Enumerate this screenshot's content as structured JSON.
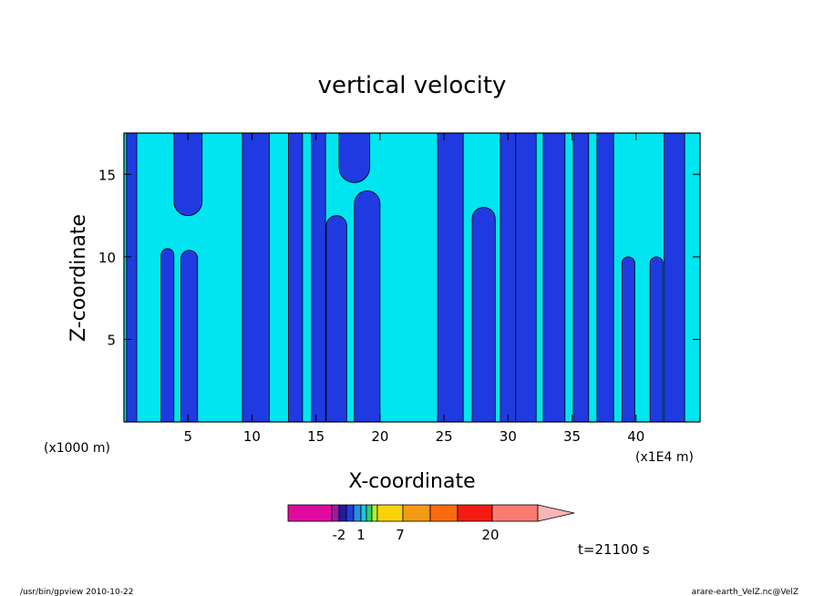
{
  "chart_data": {
    "type": "heatmap",
    "title": "vertical velocity",
    "xlabel": "X-coordinate",
    "ylabel": "Z-coordinate",
    "x_unit_left": "(x1000 m)",
    "x_unit_right": "(x1E4 m)",
    "xlim": [
      0,
      45
    ],
    "ylim": [
      0,
      17.5
    ],
    "xticks": [
      "5",
      "10",
      "15",
      "20",
      "25",
      "30",
      "35",
      "40"
    ],
    "xtick_values": [
      5,
      10,
      15,
      20,
      25,
      30,
      35,
      40
    ],
    "yticks": [
      "5",
      "10",
      "15"
    ],
    "ytick_values": [
      5,
      10,
      15
    ],
    "colorbar": {
      "colors": [
        "#e00aa0",
        "#9c1aa0",
        "#1e1e99",
        "#1f3fd9",
        "#2e8be0",
        "#20c4e6",
        "#2ed06a",
        "#aef02f",
        "#f9d20a",
        "#f49b14",
        "#f86b10",
        "#f51a14",
        "#fa7a70",
        "#f9b5b5"
      ],
      "labels": [
        "-2",
        "1",
        "7",
        "20"
      ]
    },
    "field_colors": {
      "positive": "#1f3ae0",
      "negative": "#00e5f0"
    },
    "plumes": [
      {
        "x": 0.6,
        "w": 0.8,
        "z1": 0.0,
        "z2": 17.5
      },
      {
        "x": 3.4,
        "w": 1.0,
        "z1": 0.0,
        "z2": 10.5
      },
      {
        "x": 5.1,
        "w": 1.3,
        "z1": 0.0,
        "z2": 10.4
      },
      {
        "x": 5.0,
        "w": 2.2,
        "z1": 12.5,
        "z2": 17.5
      },
      {
        "x": 10.3,
        "w": 2.1,
        "z1": 0.0,
        "z2": 17.5
      },
      {
        "x": 13.4,
        "w": 1.1,
        "z1": 0.0,
        "z2": 17.5
      },
      {
        "x": 15.2,
        "w": 1.1,
        "z1": 0.0,
        "z2": 17.5
      },
      {
        "x": 16.6,
        "w": 1.6,
        "z1": 0.0,
        "z2": 12.5
      },
      {
        "x": 19.0,
        "w": 2.0,
        "z1": 0.0,
        "z2": 14.0
      },
      {
        "x": 18.0,
        "w": 2.4,
        "z1": 14.5,
        "z2": 17.5
      },
      {
        "x": 25.5,
        "w": 2.0,
        "z1": 0.0,
        "z2": 17.5
      },
      {
        "x": 28.1,
        "w": 1.8,
        "z1": 0.0,
        "z2": 13.0
      },
      {
        "x": 30.1,
        "w": 1.4,
        "z1": 0.0,
        "z2": 17.5
      },
      {
        "x": 31.4,
        "w": 1.6,
        "z1": 0.0,
        "z2": 17.5
      },
      {
        "x": 33.6,
        "w": 1.7,
        "z1": 0.0,
        "z2": 17.5
      },
      {
        "x": 35.7,
        "w": 1.2,
        "z1": 0.0,
        "z2": 17.5
      },
      {
        "x": 37.6,
        "w": 1.3,
        "z1": 0.0,
        "z2": 17.5
      },
      {
        "x": 39.4,
        "w": 1.0,
        "z1": 0.0,
        "z2": 10.0
      },
      {
        "x": 41.6,
        "w": 1.0,
        "z1": 0.0,
        "z2": 10.0
      },
      {
        "x": 43.0,
        "w": 1.6,
        "z1": 0.0,
        "z2": 17.5
      }
    ]
  },
  "time_label": "t=21100 s",
  "footer_left": "/usr/bin/gpview   2010-10-22",
  "footer_right": "arare-earth_VelZ.nc@VelZ"
}
